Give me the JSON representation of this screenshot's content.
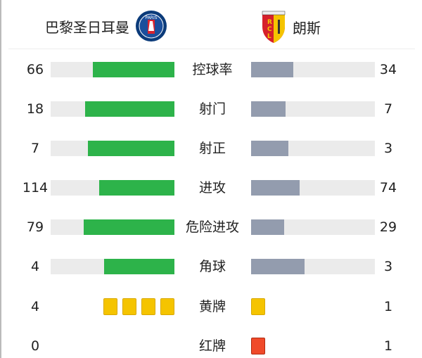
{
  "home": {
    "name": "巴黎圣日耳曼",
    "logo_text": "PARIS"
  },
  "away": {
    "name": "朗斯",
    "logo_text": "RCL"
  },
  "stats": [
    {
      "label": "控球率",
      "home": "66",
      "away": "34",
      "home_pct": 66,
      "away_pct": 34
    },
    {
      "label": "射门",
      "home": "18",
      "away": "7",
      "home_pct": 72,
      "away_pct": 28
    },
    {
      "label": "射正",
      "home": "7",
      "away": "3",
      "home_pct": 70,
      "away_pct": 30
    },
    {
      "label": "进攻",
      "home": "114",
      "away": "74",
      "home_pct": 60.6,
      "away_pct": 39.4
    },
    {
      "label": "危险进攻",
      "home": "79",
      "away": "29",
      "home_pct": 73.1,
      "away_pct": 26.9
    },
    {
      "label": "角球",
      "home": "4",
      "away": "3",
      "home_pct": 57.1,
      "away_pct": 42.9
    }
  ],
  "cards": [
    {
      "label": "黄牌",
      "home": "4",
      "away": "1",
      "color": "#f5c400",
      "border": "#d8a800"
    },
    {
      "label": "红牌",
      "home": "0",
      "away": "1",
      "color": "#f04a2a",
      "border": "#b02a10"
    }
  ]
}
